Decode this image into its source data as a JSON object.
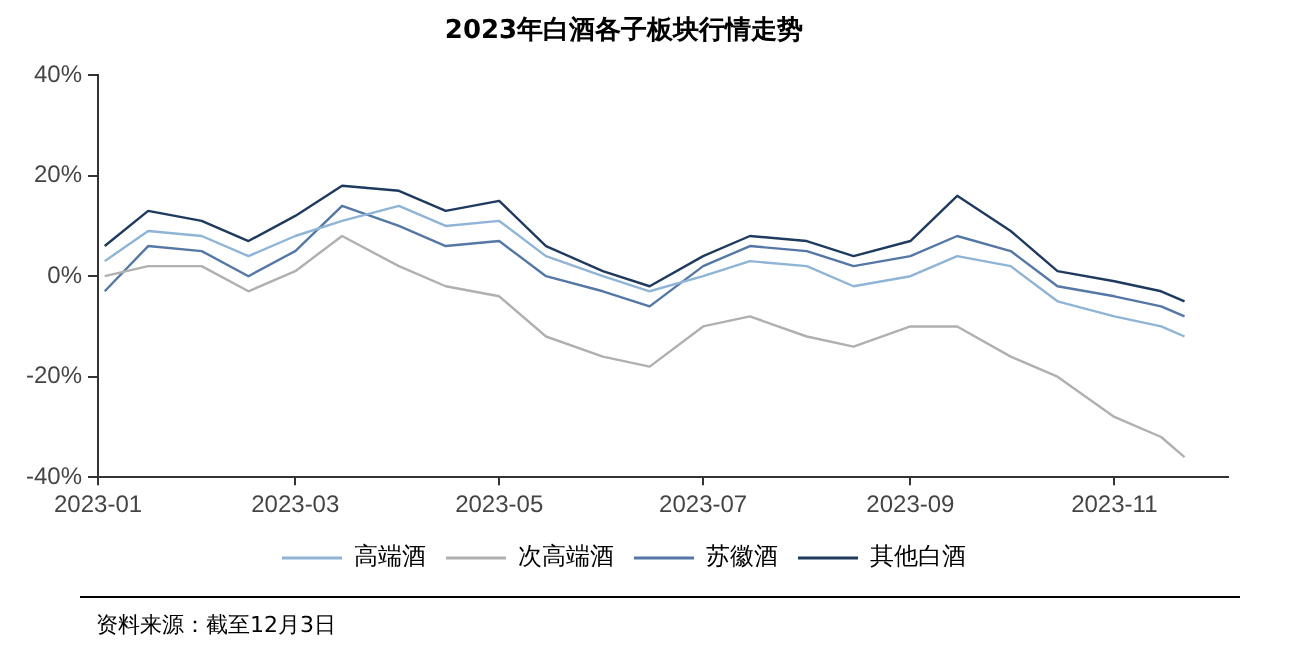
{
  "chart_data": {
    "type": "line",
    "title": "2023年白酒各子板块行情走势",
    "x": [
      "2023-01-03",
      "2023-01-16",
      "2023-02-01",
      "2023-02-15",
      "2023-03-01",
      "2023-03-15",
      "2023-04-01",
      "2023-04-15",
      "2023-05-01",
      "2023-05-15",
      "2023-06-01",
      "2023-06-15",
      "2023-07-01",
      "2023-07-15",
      "2023-08-01",
      "2023-08-15",
      "2023-09-01",
      "2023-09-15",
      "2023-10-01",
      "2023-10-15",
      "2023-11-01",
      "2023-11-15",
      "2023-11-22"
    ],
    "series": [
      {
        "name": "高端酒",
        "color": "#8fb4d6",
        "values": [
          3,
          9,
          8,
          4,
          8,
          11,
          14,
          10,
          11,
          4,
          0,
          -3,
          0,
          3,
          2,
          -2,
          0,
          4,
          2,
          -5,
          -8,
          -10,
          -12
        ]
      },
      {
        "name": "次高端酒",
        "color": "#b0b0b0",
        "values": [
          0,
          2,
          2,
          -3,
          1,
          8,
          2,
          -2,
          -4,
          -12,
          -16,
          -18,
          -10,
          -8,
          -12,
          -14,
          -10,
          -10,
          -16,
          -20,
          -28,
          -32,
          -36
        ]
      },
      {
        "name": "苏徽酒",
        "color": "#5577a6",
        "values": [
          -3,
          6,
          5,
          0,
          5,
          14,
          10,
          6,
          7,
          0,
          -3,
          -6,
          2,
          6,
          5,
          2,
          4,
          8,
          5,
          -2,
          -4,
          -6,
          -8
        ]
      },
      {
        "name": "其他白酒",
        "color": "#1f3a5f",
        "values": [
          6,
          13,
          11,
          7,
          12,
          18,
          17,
          13,
          15,
          6,
          1,
          -2,
          4,
          8,
          7,
          4,
          7,
          16,
          9,
          1,
          -1,
          -3,
          -5
        ]
      }
    ],
    "xlim": [
      "2023-01-01",
      "2023-12-05"
    ],
    "xticks": [
      "2023-01",
      "2023-03",
      "2023-05",
      "2023-07",
      "2023-09",
      "2023-11"
    ],
    "ylim": [
      -40,
      40
    ],
    "yticks": [
      {
        "value": -40,
        "label": "-40%"
      },
      {
        "value": -20,
        "label": "-20%"
      },
      {
        "value": 0,
        "label": "0%"
      },
      {
        "value": 20,
        "label": "20%"
      },
      {
        "value": 40,
        "label": "40%"
      }
    ],
    "grid": false,
    "legend": "bottom",
    "marker": "none",
    "line_style": "solid",
    "annotations": [
      "资料来源：截至12月3日"
    ]
  }
}
